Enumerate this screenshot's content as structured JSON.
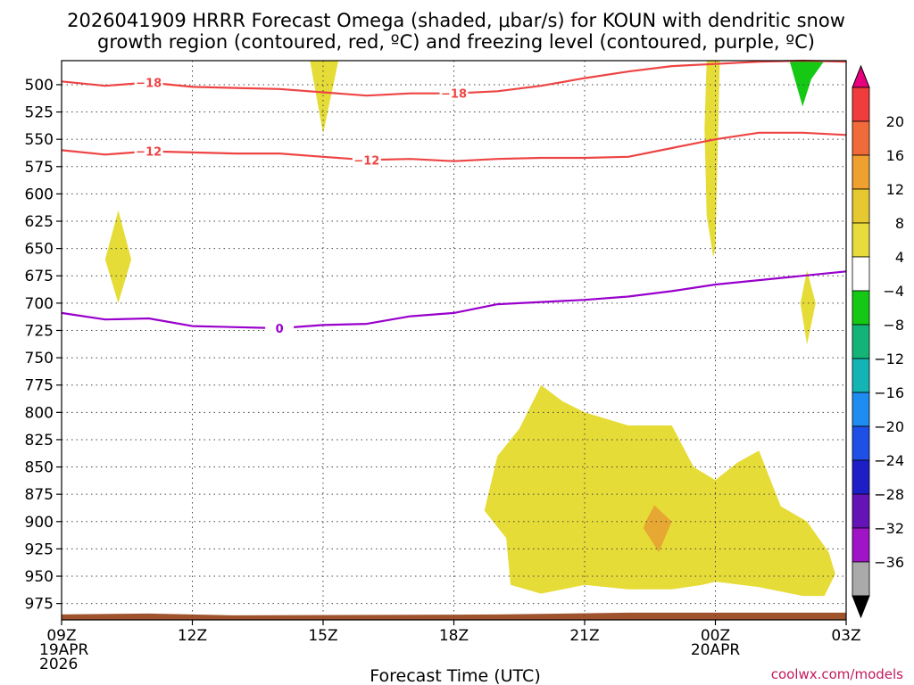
{
  "title": {
    "line1": "2026041909 HRRR Forecast Omega (shaded, μbar/s) for KOUN with dendritic snow",
    "line2": "growth region (contoured, red, ºC) and freezing level (contoured, purple, ºC)"
  },
  "credit": "coolwx.com/models",
  "chart_data": {
    "type": "time-height",
    "title": "2026041909 HRRR Forecast Omega (shaded, μbar/s) for KOUN with dendritic snow growth region (contoured, red, ºC) and freezing level (contoured, purple, ºC)",
    "xlabel": "Forecast Time (UTC)",
    "ylabel": "",
    "xlim": [
      0,
      18
    ],
    "ylim": [
      478,
      990
    ],
    "y_reversed": true,
    "grid": true,
    "x_ticks": [
      {
        "x": 0,
        "labels": [
          "09Z",
          "19APR",
          "2026"
        ]
      },
      {
        "x": 3,
        "labels": [
          "12Z"
        ]
      },
      {
        "x": 6,
        "labels": [
          "15Z"
        ]
      },
      {
        "x": 9,
        "labels": [
          "18Z"
        ]
      },
      {
        "x": 12,
        "labels": [
          "21Z"
        ]
      },
      {
        "x": 15,
        "labels": [
          "00Z",
          "20APR"
        ]
      },
      {
        "x": 18,
        "labels": [
          "03Z"
        ]
      }
    ],
    "y_ticks": [
      "500",
      "525",
      "550",
      "575",
      "600",
      "625",
      "650",
      "675",
      "700",
      "725",
      "750",
      "775",
      "800",
      "825",
      "850",
      "875",
      "900",
      "925",
      "950",
      "975"
    ],
    "colorbar": {
      "labels": [
        "20",
        "16",
        "12",
        "8",
        "4",
        "−4",
        "−8",
        "−12",
        "−16",
        "−20",
        "−24",
        "−28",
        "−32",
        "−36"
      ],
      "colors": [
        "#e6007e",
        "#f03c3c",
        "#f06a3a",
        "#f0a030",
        "#e6c830",
        "#e8dc3c",
        "#ffffff",
        "#14c814",
        "#14b478",
        "#14b4b4",
        "#1e8cf0",
        "#1e50e6",
        "#1e1ec8",
        "#6414b4",
        "#a014c8",
        "#aaaaaa",
        "#000000"
      ]
    },
    "contours": [
      {
        "name": "-18",
        "color": "#ee4444",
        "points": [
          [
            0,
            497
          ],
          [
            1,
            501
          ],
          [
            2,
            498
          ],
          [
            3,
            502
          ],
          [
            4,
            503
          ],
          [
            5,
            504
          ],
          [
            6,
            507
          ],
          [
            7,
            510
          ],
          [
            8,
            508
          ],
          [
            9,
            508
          ],
          [
            10,
            506
          ],
          [
            11,
            501
          ],
          [
            12,
            494
          ],
          [
            13,
            488
          ],
          [
            14,
            483
          ],
          [
            15,
            481
          ],
          [
            16,
            479
          ],
          [
            17,
            478
          ],
          [
            18,
            479
          ]
        ],
        "label_points": [
          [
            2,
            498
          ],
          [
            9,
            508
          ]
        ]
      },
      {
        "name": "-12",
        "color": "#ee4444",
        "points": [
          [
            0,
            560
          ],
          [
            1,
            564
          ],
          [
            2,
            561
          ],
          [
            3,
            562
          ],
          [
            4,
            563
          ],
          [
            5,
            563
          ],
          [
            6,
            566
          ],
          [
            7,
            569
          ],
          [
            8,
            568
          ],
          [
            9,
            570
          ],
          [
            10,
            568
          ],
          [
            11,
            567
          ],
          [
            12,
            567
          ],
          [
            13,
            566
          ],
          [
            14,
            558
          ],
          [
            15,
            550
          ],
          [
            16,
            544
          ],
          [
            17,
            544
          ],
          [
            18,
            546
          ]
        ],
        "label_points": [
          [
            2,
            561
          ],
          [
            7,
            569
          ]
        ]
      },
      {
        "name": "0",
        "color": "#9900cc",
        "points": [
          [
            0,
            709
          ],
          [
            1,
            715
          ],
          [
            2,
            714
          ],
          [
            3,
            721
          ],
          [
            4,
            722
          ],
          [
            5,
            723
          ],
          [
            6,
            720
          ],
          [
            7,
            719
          ],
          [
            8,
            712
          ],
          [
            9,
            709
          ],
          [
            10,
            701
          ],
          [
            11,
            699
          ],
          [
            12,
            697
          ],
          [
            13,
            694
          ],
          [
            14,
            689
          ],
          [
            15,
            683
          ],
          [
            16,
            679
          ],
          [
            17,
            675
          ],
          [
            18,
            671
          ]
        ],
        "label_points": [
          [
            5,
            723
          ]
        ]
      }
    ],
    "shaded_regions": [
      {
        "value": 4,
        "color": "#e6dc37",
        "points": [
          [
            5.7,
            478
          ],
          [
            6.35,
            478
          ],
          [
            6.0,
            545
          ]
        ]
      },
      {
        "value": 4,
        "color": "#e6dc37",
        "points": [
          [
            1.0,
            660
          ],
          [
            1.3,
            615
          ],
          [
            1.6,
            660
          ],
          [
            1.3,
            700
          ]
        ]
      },
      {
        "value": 4,
        "color": "#e6dc37",
        "points": [
          [
            14.8,
            478
          ],
          [
            15.1,
            478
          ],
          [
            15.0,
            650
          ],
          [
            14.95,
            658
          ],
          [
            14.8,
            620
          ],
          [
            14.75,
            540
          ]
        ]
      },
      {
        "value": 4,
        "color": "#e6dc37",
        "points": [
          [
            16.95,
            700
          ],
          [
            17.1,
            670
          ],
          [
            17.3,
            700
          ],
          [
            17.1,
            738
          ]
        ]
      },
      {
        "value": 4,
        "color": "#e6dc37",
        "points": [
          [
            10.0,
            840
          ],
          [
            10.5,
            815
          ],
          [
            11.0,
            775
          ],
          [
            11.5,
            790
          ],
          [
            12,
            800
          ],
          [
            13,
            812
          ],
          [
            14,
            812
          ],
          [
            14.5,
            850
          ],
          [
            15,
            862
          ],
          [
            15.5,
            846
          ],
          [
            16,
            835
          ],
          [
            16.5,
            886
          ],
          [
            17.1,
            900
          ],
          [
            17.6,
            928
          ],
          [
            17.75,
            948
          ],
          [
            17.5,
            968
          ],
          [
            17,
            968
          ],
          [
            16,
            960
          ],
          [
            15,
            955
          ],
          [
            14.7,
            958
          ],
          [
            14,
            962
          ],
          [
            13,
            962
          ],
          [
            12,
            958
          ],
          [
            11,
            966
          ],
          [
            10.3,
            958
          ],
          [
            10.2,
            915
          ],
          [
            9.7,
            890
          ]
        ]
      },
      {
        "value": 8,
        "color": "#e6a832",
        "points": [
          [
            13.4,
            900
          ],
          [
            13.6,
            885
          ],
          [
            14.0,
            900
          ],
          [
            13.7,
            928
          ],
          [
            13.35,
            906
          ]
        ]
      },
      {
        "value": -4,
        "color": "#14c814",
        "points": [
          [
            16.7,
            478
          ],
          [
            17.5,
            478
          ],
          [
            17.2,
            495
          ],
          [
            17.0,
            520
          ]
        ]
      }
    ],
    "terrain": {
      "color": "#a0522d",
      "top_pressure": 985
    }
  }
}
